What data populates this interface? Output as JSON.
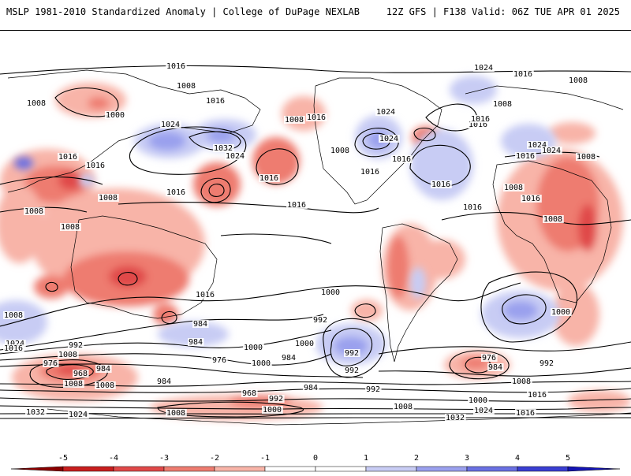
{
  "header": {
    "left_title": "MSLP 1981-2010 Standardized Anomaly | College of DuPage NEXLAB",
    "right_title": "12Z GFS | F138 Valid: 06Z TUE APR 01 2025"
  },
  "colorbar": {
    "ticks": [
      "-5",
      "-4",
      "-3",
      "-2",
      "-1",
      "0",
      "1",
      "2",
      "3",
      "4",
      "5"
    ],
    "colors": [
      "#8b0000",
      "#c81e1e",
      "#e04848",
      "#ee7c70",
      "#f8b4a8",
      "#ffffff",
      "#ffffff",
      "#c8ccf4",
      "#9aa0ee",
      "#6a70e2",
      "#3a3ed2",
      "#1414b4"
    ]
  },
  "isobars": {
    "labels": [
      "1016",
      "1008",
      "1008",
      "1000",
      "1016",
      "1024",
      "1032",
      "1024",
      "1016",
      "1016",
      "1016",
      "1016",
      "1008",
      "1008",
      "1008",
      "1008",
      "1016",
      "1024",
      "1016",
      "1008",
      "1024",
      "1016",
      "1008",
      "1024",
      "1016",
      "1016",
      "1008",
      "1016",
      "1024",
      "1016",
      "1008",
      "1008",
      "1016",
      "1016",
      "1024",
      "1016",
      "1016",
      "1000",
      "1008",
      "992",
      "1016",
      "1000",
      "984",
      "992",
      "1000",
      "1000",
      "984",
      "976",
      "992",
      "984",
      "1008",
      "1024",
      "1016",
      "992",
      "1008",
      "976",
      "968",
      "984",
      "1008",
      "1008",
      "1000",
      "984",
      "992",
      "976",
      "984",
      "992",
      "1008",
      "1016",
      "968",
      "984",
      "992",
      "1000",
      "1008",
      "1032",
      "1024",
      "1008",
      "1032",
      "1024",
      "1016",
      "1000"
    ]
  }
}
